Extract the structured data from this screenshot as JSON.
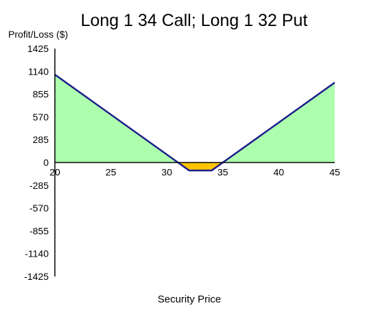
{
  "chart_data": {
    "type": "area",
    "title": "Long 1 34 Call; Long 1 32 Put",
    "ylabel": "Profit/Loss ($)",
    "xlabel": "Security Price",
    "xlim": [
      20,
      45
    ],
    "ylim": [
      -1425,
      1425
    ],
    "x_ticks": [
      20,
      25,
      30,
      35,
      40,
      45
    ],
    "y_ticks": [
      1425,
      1140,
      855,
      570,
      285,
      0,
      -285,
      -570,
      -855,
      -1140,
      -1425
    ],
    "series": [
      {
        "x": [
          20,
          31,
          32,
          34,
          35,
          45
        ],
        "y": [
          1100,
          0,
          -100,
          -100,
          0,
          1000
        ]
      }
    ],
    "colors": {
      "profit_fill": "#adffad",
      "loss_fill": "#ffc500",
      "line": "#1a1a8c",
      "axis": "#000000"
    },
    "grid": false,
    "legend": "none"
  }
}
